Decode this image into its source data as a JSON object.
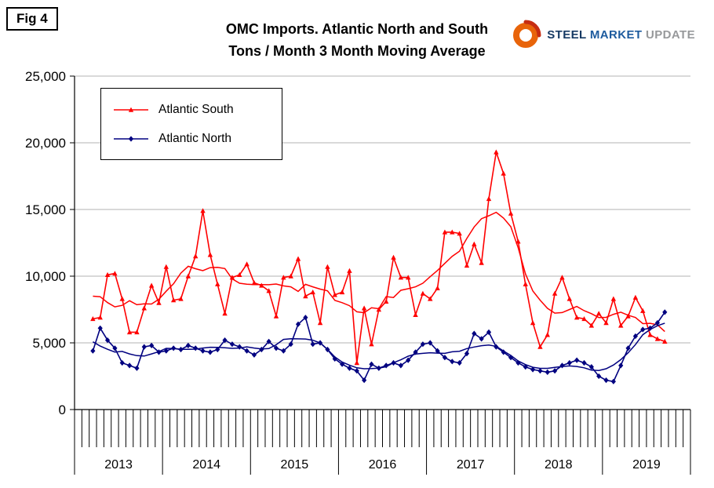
{
  "figure_label": "Fig 4",
  "title": {
    "line1": "OMC Imports. Atlantic North and South",
    "line2": "Tons / Month 3 Month Moving Average"
  },
  "logo": {
    "word1": "STEEL",
    "word2": "MARKET",
    "word3": "UPDATE",
    "accent_color": "#e8640a"
  },
  "chart_data": {
    "type": "line",
    "title": "OMC Imports. Atlantic North and South Tons / Month 3 Month Moving Average",
    "x_unit": "month",
    "x_years": [
      2013,
      2014,
      2015,
      2016,
      2017,
      2018,
      2019
    ],
    "ylim": [
      0,
      25000
    ],
    "ytick_interval": 5000,
    "ytick_labels": [
      "0",
      "5,000",
      "10,000",
      "15,000",
      "20,000",
      "25,000"
    ],
    "grid": "horizontal",
    "gridline_color": "#b3b3b3",
    "legend_position": "top-left",
    "smooth_line_window": 7,
    "series": [
      {
        "name": "Atlantic South",
        "color": "#ff0000",
        "marker": "triangle",
        "values": [
          6800,
          6900,
          10100,
          10200,
          8300,
          5800,
          5800,
          7600,
          9300,
          8000,
          10700,
          8200,
          8300,
          10000,
          11500,
          14900,
          11600,
          9400,
          7200,
          9900,
          10100,
          10900,
          9500,
          9300,
          8900,
          7000,
          9900,
          10000,
          11300,
          8500,
          8800,
          6500,
          10700,
          8600,
          8800,
          10400,
          3500,
          7600,
          4900,
          7500,
          8100,
          11400,
          9900,
          9900,
          7100,
          8700,
          8300,
          9100,
          13300,
          13300,
          13200,
          10800,
          12400,
          11000,
          15800,
          19300,
          17700,
          14700,
          12600,
          9400,
          6500,
          4700,
          5600,
          8700,
          9900,
          8300,
          6900,
          6800,
          6300,
          7200,
          6500,
          8300,
          6300,
          7000,
          8400,
          7400,
          5600,
          5300,
          5100
        ]
      },
      {
        "name": "Atlantic North",
        "color": "#000080",
        "marker": "diamond",
        "values": [
          4400,
          6100,
          5200,
          4600,
          3500,
          3300,
          3100,
          4700,
          4800,
          4300,
          4400,
          4600,
          4500,
          4800,
          4600,
          4400,
          4300,
          4500,
          5200,
          4900,
          4700,
          4400,
          4100,
          4500,
          5100,
          4600,
          4400,
          4900,
          6400,
          6900,
          4900,
          5000,
          4500,
          3800,
          3400,
          3100,
          2900,
          2200,
          3400,
          3100,
          3300,
          3500,
          3300,
          3700,
          4300,
          4900,
          5000,
          4400,
          3900,
          3600,
          3500,
          4200,
          5700,
          5300,
          5800,
          4700,
          4300,
          3900,
          3500,
          3200,
          3000,
          2900,
          2800,
          2900,
          3300,
          3500,
          3700,
          3500,
          3200,
          2500,
          2200,
          2100,
          3300,
          4600,
          5500,
          6000,
          6100,
          6500,
          7300
        ]
      }
    ]
  }
}
